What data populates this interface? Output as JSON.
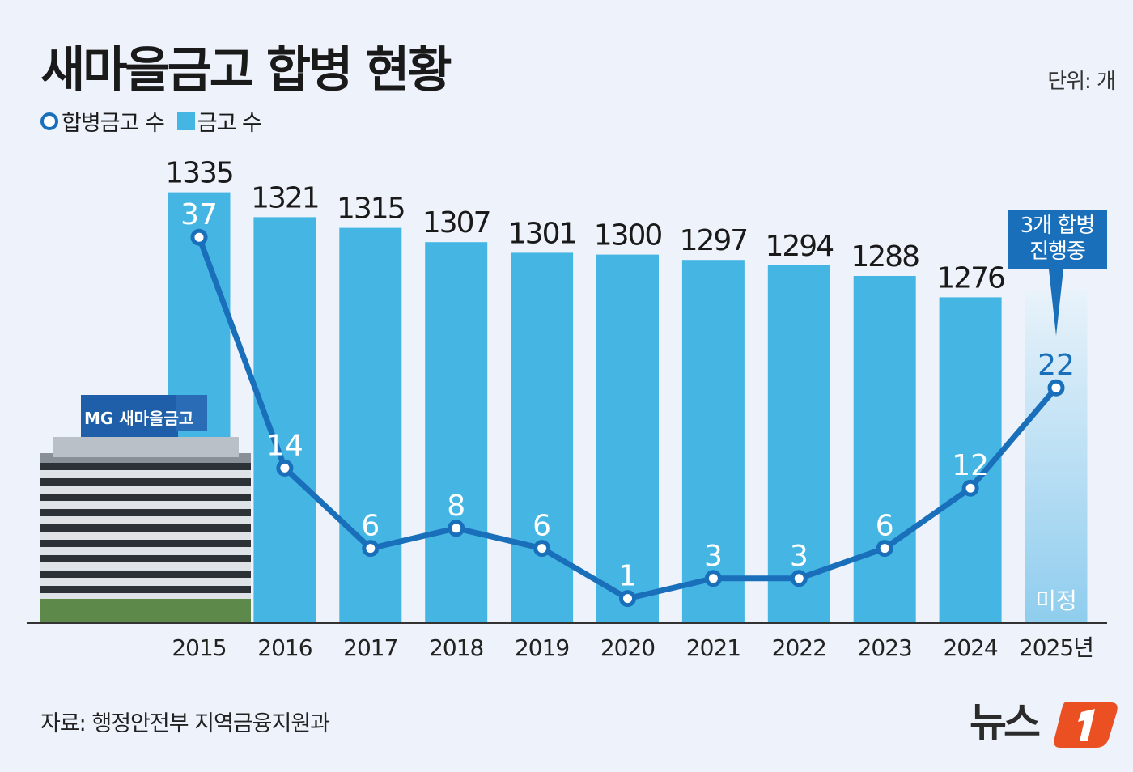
{
  "title": "새마을금고 합병 현황",
  "unit": "단위: 개",
  "legend": {
    "line": "합병금고 수",
    "bar": "금고 수"
  },
  "source": "자료: 행정안전부 지역금융지원과",
  "logo_text": "뉴스1",
  "building_sign": "MG 새마을금고",
  "chart_data": {
    "type": "bar+line",
    "categories": [
      "2015",
      "2016",
      "2017",
      "2018",
      "2019",
      "2020",
      "2021",
      "2022",
      "2023",
      "2024",
      "2025년"
    ],
    "series": [
      {
        "name": "금고 수",
        "type": "bar",
        "values": [
          1335,
          1321,
          1315,
          1307,
          1301,
          1300,
          1297,
          1294,
          1288,
          1276,
          null
        ],
        "color": "#45b6e3"
      },
      {
        "name": "합병금고 수",
        "type": "line",
        "values": [
          37,
          14,
          6,
          8,
          6,
          1,
          3,
          3,
          6,
          12,
          22
        ],
        "color": "#1a6fba"
      }
    ],
    "annotations": {
      "bar_2025": "미정",
      "callout_2025": "3개 합병\n진행중"
    }
  }
}
